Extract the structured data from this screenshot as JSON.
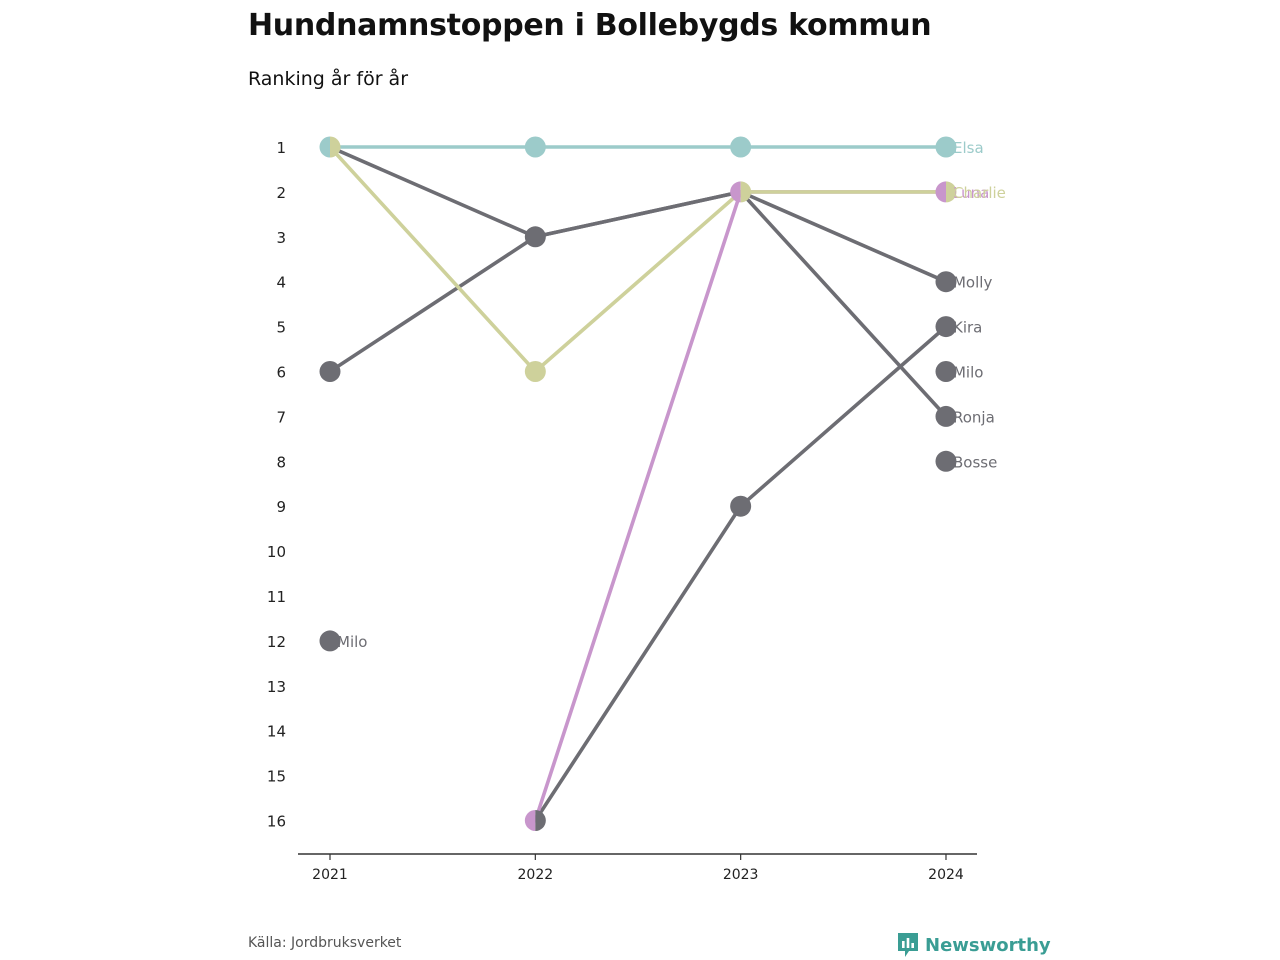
{
  "title": "Hundnamnstoppen i Bollebygds kommun",
  "subtitle": "Ranking år för år",
  "source": "Källa: Jordbruksverket",
  "brand": {
    "name": "Newsworthy",
    "icon": "newsworthy-logo-icon",
    "color": "#3a9d94"
  },
  "chart_data": {
    "type": "line",
    "subtype": "bump",
    "x": [
      "2021",
      "2022",
      "2023",
      "2024"
    ],
    "y_ticks": [
      "1",
      "2",
      "3",
      "4",
      "5",
      "6",
      "7",
      "8",
      "9",
      "10",
      "11",
      "12",
      "13",
      "14",
      "15",
      "16"
    ],
    "ylim": [
      1,
      16
    ],
    "y_reversed": true,
    "grid": false,
    "series": [
      {
        "name": "Elsa",
        "color": "#9ccbca",
        "values": [
          1,
          1,
          1,
          1
        ]
      },
      {
        "name": "Luna",
        "color": "#c896cc",
        "values": [
          null,
          16,
          2,
          2
        ]
      },
      {
        "name": "Charlie",
        "color": "#ced19b",
        "values": [
          1,
          6,
          2,
          2
        ]
      },
      {
        "name": "Molly",
        "color": "#6d6d73",
        "values": [
          1,
          3,
          2,
          4
        ]
      },
      {
        "name": "Kira",
        "color": "#6d6d73",
        "values": [
          null,
          16,
          9,
          5
        ]
      },
      {
        "name": "Milo",
        "color": "#6d6d73",
        "values": [
          12,
          null,
          null,
          6
        ]
      },
      {
        "name": "Ronja",
        "color": "#6d6d73",
        "values": [
          6,
          3,
          2,
          7
        ]
      },
      {
        "name": "Bosse",
        "color": "#6d6d73",
        "values": [
          null,
          null,
          null,
          8
        ]
      }
    ],
    "point_labels": [
      {
        "text": "Milo",
        "x": "2021",
        "y": 12,
        "color": "#6d6d73"
      }
    ]
  }
}
